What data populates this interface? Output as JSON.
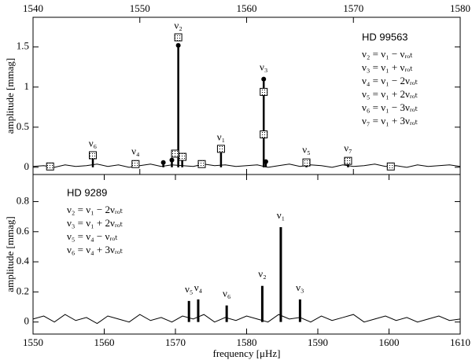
{
  "chart_data": [
    {
      "type": "stem",
      "title": "HD 99563",
      "y_label": "amplitude [mmag]",
      "x_axis_side": "top",
      "xlim": [
        1540,
        1580
      ],
      "xticks": [
        1540,
        1550,
        1560,
        1570,
        1580
      ],
      "ylim": [
        -0.09,
        1.87
      ],
      "yticks": [
        0,
        0.5,
        1,
        1.5
      ],
      "markers": "circle",
      "color": "#000000",
      "peaks": {
        "x": [
          1545.6,
          1549.6,
          1552.2,
          1553.0,
          1553.6,
          1553.97,
          1555.8,
          1557.6,
          1561.6,
          1561.8,
          1565.6,
          1569.5
        ],
        "values": [
          0.15,
          0.05,
          0.06,
          0.09,
          1.52,
          0.12,
          0.05,
          0.23,
          1.1,
          0.07,
          0.07,
          0.09
        ],
        "labels": [
          "ν₆",
          "ν₄",
          null,
          null,
          "ν₂",
          null,
          null,
          "ν₁",
          "ν₃",
          null,
          "ν₅",
          "ν₇"
        ]
      },
      "squares": {
        "x": [
          1541.6,
          1545.6,
          1549.6,
          1553.3,
          1553.6,
          1554.0,
          1555.8,
          1557.6,
          1561.6,
          1561.6,
          1565.6,
          1569.5,
          1573.5
        ],
        "values": [
          0.01,
          0.15,
          0.04,
          0.17,
          1.62,
          0.13,
          0.04,
          0.23,
          0.94,
          0.41,
          0.06,
          0.08,
          0.01
        ]
      },
      "noise": {
        "x": [
          1540,
          1541,
          1542,
          1543,
          1544,
          1545,
          1546,
          1547,
          1548,
          1549,
          1550,
          1551,
          1552,
          1553,
          1554,
          1555,
          1556,
          1557,
          1558,
          1559,
          1560,
          1561,
          1562,
          1563,
          1564,
          1565,
          1566,
          1567,
          1568,
          1569,
          1570,
          1571,
          1572,
          1573,
          1574,
          1575,
          1576,
          1577,
          1578,
          1579,
          1580
        ],
        "values": [
          0.01,
          0.02,
          0.0,
          0.03,
          0.01,
          0.02,
          0.04,
          0.01,
          0.03,
          0.0,
          0.02,
          0.04,
          0.01,
          0.03,
          0.02,
          0.01,
          0.04,
          0.02,
          0.03,
          0.01,
          0.02,
          0.03,
          0.0,
          0.02,
          0.04,
          0.01,
          0.03,
          0.02,
          0.0,
          0.03,
          0.01,
          0.02,
          0.04,
          0.01,
          0.02,
          0.0,
          0.03,
          0.01,
          0.02,
          0.03,
          0.01
        ]
      },
      "relations": [
        "ν₂ = ν₁ − νᵣₒₜ",
        "ν₃ = ν₁ + νᵣₒₜ",
        "ν₄ = ν₁ − 2νᵣₒₜ",
        "ν₅ = ν₁ + 2νᵣₒₜ",
        "ν₆ = ν₁ − 3νᵣₒₜ",
        "ν₇ = ν₁ + 3νᵣₒₜ"
      ]
    },
    {
      "type": "stem",
      "title": "HD 9289",
      "y_label": "amplitude [mmag]",
      "x_label": "frequency [μHz]",
      "x_axis_side": "bottom",
      "xlim": [
        1550,
        1610
      ],
      "xticks": [
        1550,
        1560,
        1570,
        1580,
        1590,
        1600,
        1610
      ],
      "ylim": [
        -0.08,
        0.98
      ],
      "yticks": [
        0,
        0.2,
        0.4,
        0.6,
        0.8
      ],
      "markers": "none",
      "color": "#000000",
      "peaks": {
        "x": [
          1571.9,
          1573.2,
          1577.2,
          1582.2,
          1584.8,
          1587.5
        ],
        "values": [
          0.14,
          0.15,
          0.11,
          0.24,
          0.63,
          0.15
        ],
        "labels": [
          "ν₅",
          "ν₄",
          "ν₆",
          "ν₂",
          "ν₁",
          "ν₃"
        ]
      },
      "noise": {
        "x": [
          1550,
          1551.5,
          1553,
          1554.5,
          1556,
          1557.5,
          1559,
          1560.5,
          1562,
          1563.5,
          1565,
          1566.5,
          1568,
          1569.5,
          1571,
          1572.5,
          1574,
          1575.5,
          1577,
          1578.5,
          1580,
          1581.5,
          1583,
          1584.5,
          1586,
          1587.5,
          1589,
          1590.5,
          1592,
          1593.5,
          1595,
          1596.5,
          1598,
          1599.5,
          1601,
          1602.5,
          1604,
          1605.5,
          1607,
          1608.5,
          1610
        ],
        "values": [
          0.02,
          0.04,
          0.0,
          0.05,
          0.01,
          0.03,
          -0.01,
          0.04,
          0.02,
          0.0,
          0.05,
          0.01,
          0.03,
          0.0,
          0.04,
          0.02,
          0.05,
          0.0,
          0.03,
          0.01,
          0.04,
          0.02,
          0.0,
          0.05,
          0.02,
          0.03,
          0.0,
          0.04,
          0.01,
          0.03,
          0.05,
          0.0,
          0.02,
          0.04,
          0.01,
          0.03,
          0.0,
          0.02,
          0.04,
          0.01,
          0.02
        ]
      },
      "relations": [
        "ν₂ = ν₁ − 2νᵣₒₜ",
        "ν₃ = ν₁ + 2νᵣₒₜ",
        "ν₅ = ν₄ − νᵣₒₜ",
        "ν₆ = ν₄ + 3νᵣₒₜ"
      ]
    }
  ]
}
